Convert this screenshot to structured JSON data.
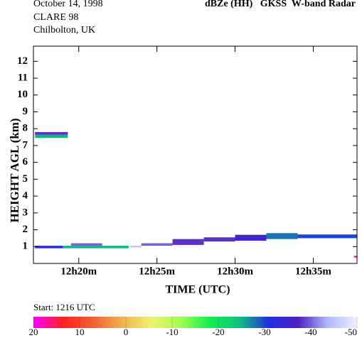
{
  "chart_data": {
    "type": "time-height",
    "header_left": [
      "October 14, 1998",
      "CLARE 98",
      "Chilbolton, UK"
    ],
    "title": "dBZe (HH)   GKSS  W-band Radar",
    "ylabel": "HEIGHT AGL (km)",
    "xlabel": "TIME (UTC)",
    "start_label": "Start: 1216 UTC",
    "xlim": [
      17.1,
      37.8
    ],
    "xticks": [
      {
        "value": 20,
        "label": "12h20m"
      },
      {
        "value": 25,
        "label": "12h25m"
      },
      {
        "value": 30,
        "label": "12h30m"
      },
      {
        "value": 35,
        "label": "12h35m"
      }
    ],
    "ylim": [
      0,
      12.9
    ],
    "yticks": [
      1,
      2,
      3,
      4,
      5,
      6,
      7,
      8,
      9,
      10,
      11,
      12
    ],
    "clim": [
      20,
      -50
    ],
    "cticks": [
      20,
      10,
      0,
      -10,
      -20,
      -30,
      -40,
      -50
    ],
    "colormap": [
      "#ff00ff",
      "#ff2020",
      "#f06030",
      "#f0b050",
      "#f0f070",
      "#a0ff50",
      "#10f050",
      "#10c080",
      "#2030e0",
      "#5020c0",
      "#b0b8ff",
      "#eef0ff"
    ],
    "echoes": [
      {
        "t0": 17.2,
        "t1": 19.3,
        "h0": 7.45,
        "h1": 7.65,
        "dbz": -25
      },
      {
        "t0": 17.2,
        "t1": 19.3,
        "h0": 7.65,
        "h1": 7.8,
        "dbz": -38
      },
      {
        "t0": 17.2,
        "t1": 19.0,
        "h0": 0.9,
        "h1": 1.05,
        "dbz": -33
      },
      {
        "t0": 19.0,
        "t1": 23.2,
        "h0": 0.9,
        "h1": 1.05,
        "dbz": -25
      },
      {
        "t0": 19.5,
        "t1": 21.5,
        "h0": 1.05,
        "h1": 1.2,
        "dbz": -40
      },
      {
        "t0": 23.3,
        "t1": 24.0,
        "h0": 0.95,
        "h1": 1.05,
        "dbz": -45
      },
      {
        "t0": 24.0,
        "t1": 26.0,
        "h0": 1.05,
        "h1": 1.2,
        "dbz": -40
      },
      {
        "t0": 26.0,
        "t1": 28.0,
        "h0": 1.1,
        "h1": 1.45,
        "dbz": -38
      },
      {
        "t0": 28.0,
        "t1": 30.0,
        "h0": 1.3,
        "h1": 1.55,
        "dbz": -38
      },
      {
        "t0": 30.0,
        "t1": 32.0,
        "h0": 1.35,
        "h1": 1.7,
        "dbz": -35
      },
      {
        "t0": 32.0,
        "t1": 34.0,
        "h0": 1.45,
        "h1": 1.8,
        "dbz": -28
      },
      {
        "t0": 34.0,
        "t1": 37.8,
        "h0": 1.5,
        "h1": 1.72,
        "dbz": -30
      },
      {
        "t0": 37.6,
        "t1": 37.8,
        "h0": 0.35,
        "h1": 0.45,
        "dbz": 15
      }
    ]
  }
}
